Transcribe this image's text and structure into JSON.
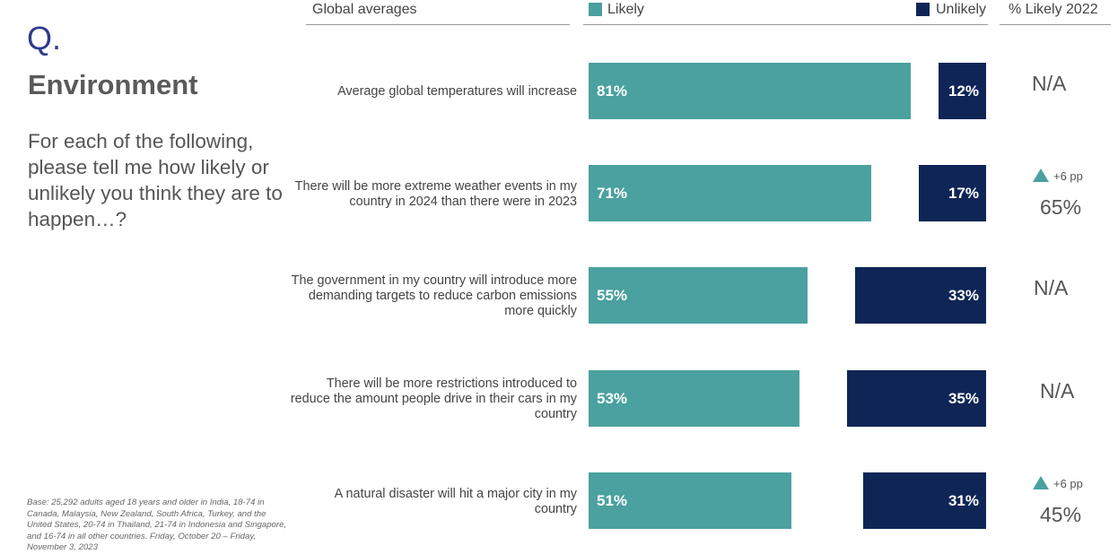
{
  "header": {
    "q_mark": "Q.",
    "title": "Environment",
    "question": "For each of the following, please tell me how likely or unlikely you think they are to happen…?",
    "col_global": "Global averages",
    "col_likely": "Likely",
    "col_unlikely": "Unlikely",
    "col_2022": "% Likely 2022"
  },
  "footnote": "Base: 25,292 adults aged 18 years and older in India, 18-74 in Canada, Malaysia, New Zealand, South Africa, Turkey, and the United States, 20-74 in Thailand, 21-74 in Indonesia and Singapore, and 16-74 in all other countries. Friday, October 20 – Friday, November 3, 2023",
  "chart_data": {
    "type": "bar",
    "categories": [
      "Average global temperatures will increase",
      "There will be more extreme weather events in my country in 2024 than there were in 2023",
      "The government in my country will introduce more demanding targets to reduce carbon emissions more quickly",
      "There will be more restrictions introduced to reduce the amount people drive in their cars in my country",
      "A natural disaster will hit a major city in my country"
    ],
    "series": [
      {
        "name": "Likely",
        "values": [
          81,
          71,
          55,
          53,
          51
        ],
        "color": "#4aa19f"
      },
      {
        "name": "Unlikely",
        "values": [
          12,
          17,
          33,
          35,
          31
        ],
        "color": "#0e2556"
      }
    ],
    "value_labels": {
      "likely": [
        "81%",
        "71%",
        "55%",
        "53%",
        "51%"
      ],
      "unlikely": [
        "12%",
        "17%",
        "33%",
        "35%",
        "31%"
      ]
    },
    "likely_2022": [
      {
        "change": "",
        "value": "N/A"
      },
      {
        "change": "+6 pp",
        "value": "65%"
      },
      {
        "change": "",
        "value": "N/A"
      },
      {
        "change": "",
        "value": "N/A"
      },
      {
        "change": "+6 pp",
        "value": "45%"
      }
    ],
    "xlim": [
      0,
      100
    ]
  }
}
